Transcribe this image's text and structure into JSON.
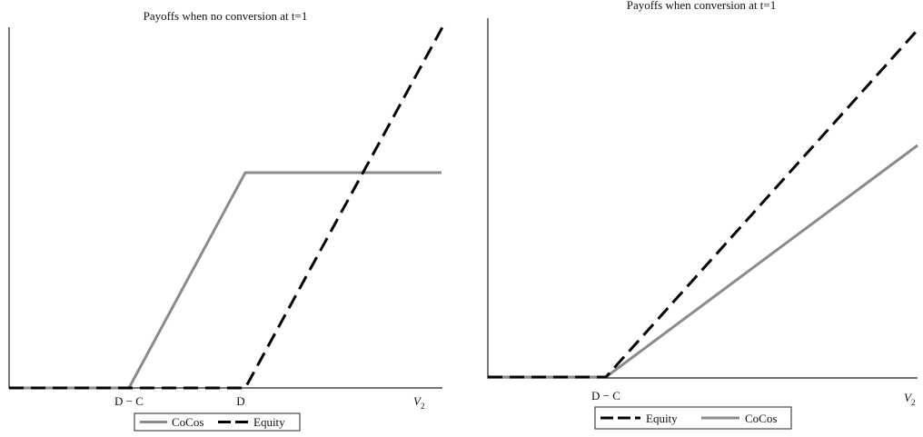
{
  "panels": [
    {
      "title": "Payoffs when no conversion at t=1",
      "x_labels": [
        "D − C",
        "D"
      ],
      "axis_label": {
        "main": "V",
        "sub": "2"
      },
      "legend": [
        "CoCos",
        "Equity"
      ]
    },
    {
      "title": "Payoffs when conversion at t=1",
      "x_labels": [
        "D − C"
      ],
      "axis_label": {
        "main": "V",
        "sub": "2"
      },
      "legend": [
        "Equity",
        "CoCos"
      ]
    }
  ]
}
